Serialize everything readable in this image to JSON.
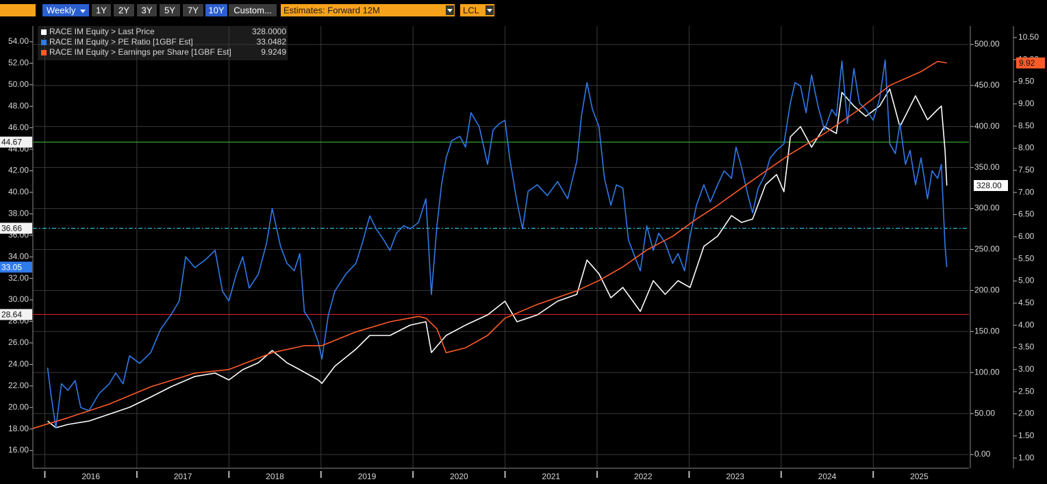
{
  "toolbar": {
    "frequency": "Weekly",
    "ranges": [
      "1Y",
      "2Y",
      "3Y",
      "5Y",
      "7Y",
      "10Y",
      "Custom..."
    ],
    "active_range": 5,
    "estimates": "Estimates: Forward 12M",
    "currency": "LCL"
  },
  "chart_data": {
    "type": "line",
    "xlim": [
      2015.87,
      2026.04
    ],
    "xticks": [
      2016,
      2017,
      2018,
      2019,
      2020,
      2021,
      2022,
      2023,
      2024,
      2025
    ],
    "ylim": [
      14.35,
      55.46
    ],
    "yticks": [
      {
        "value": 16,
        "label": "16.00"
      },
      {
        "value": 18,
        "label": "18.00"
      },
      {
        "value": 20,
        "label": "20.00"
      },
      {
        "value": 22,
        "label": "22.00"
      },
      {
        "value": 24,
        "label": "24.00"
      },
      {
        "value": 26,
        "label": "26.00"
      },
      {
        "value": 28,
        "label": "28.00"
      },
      {
        "value": 30,
        "label": "30.00"
      },
      {
        "value": 32,
        "label": "32.00"
      },
      {
        "value": 34,
        "label": "34.00"
      },
      {
        "value": 36,
        "label": "36.00"
      },
      {
        "value": 38,
        "label": "38.00"
      },
      {
        "value": 40,
        "label": "40.00"
      },
      {
        "value": 42,
        "label": "42.00"
      },
      {
        "value": 44,
        "label": "44.00"
      },
      {
        "value": 46,
        "label": "46.00"
      },
      {
        "value": 48,
        "label": "48.00"
      },
      {
        "value": 50,
        "label": "50.00"
      },
      {
        "value": 52,
        "label": "52.00"
      },
      {
        "value": 54,
        "label": "54.00"
      }
    ],
    "y2lim": [
      -16.7,
      522.5
    ],
    "y2ticks": [
      {
        "value": 0,
        "label": "0.00"
      },
      {
        "value": 50,
        "label": "50.00"
      },
      {
        "value": 100,
        "label": "100.00"
      },
      {
        "value": 150,
        "label": "150.00"
      },
      {
        "value": 200,
        "label": "200.00"
      },
      {
        "value": 250,
        "label": "250.00"
      },
      {
        "value": 300,
        "label": "300.00"
      },
      {
        "value": 350,
        "label": "350.00"
      },
      {
        "value": 400,
        "label": "400.00"
      },
      {
        "value": 450,
        "label": "450.00"
      },
      {
        "value": 500,
        "label": "500.00"
      }
    ],
    "y3lim": [
      0.77,
      10.76
    ],
    "y3ticks": [
      {
        "value": 1,
        "label": "1.00"
      },
      {
        "value": 1.5,
        "label": "1.50"
      },
      {
        "value": 2,
        "label": "2.00"
      },
      {
        "value": 2.5,
        "label": "2.50"
      },
      {
        "value": 3,
        "label": "3.00"
      },
      {
        "value": 3.5,
        "label": "3.50"
      },
      {
        "value": 4,
        "label": "4.00"
      },
      {
        "value": 4.5,
        "label": "4.50"
      },
      {
        "value": 5,
        "label": "5.00"
      },
      {
        "value": 5.5,
        "label": "5.50"
      },
      {
        "value": 6,
        "label": "6.00"
      },
      {
        "value": 6.5,
        "label": "6.50"
      },
      {
        "value": 7,
        "label": "7.00"
      },
      {
        "value": 7.5,
        "label": "7.50"
      },
      {
        "value": 8,
        "label": "8.00"
      },
      {
        "value": 8.5,
        "label": "8.50"
      },
      {
        "value": 9,
        "label": "9.00"
      },
      {
        "value": 9.5,
        "label": "9.50"
      },
      {
        "value": 10,
        "label": "10.00"
      },
      {
        "value": 10.5,
        "label": "10.50"
      }
    ],
    "grid": "y2",
    "hlines": [
      {
        "value": 44.67,
        "color": "#3fae3f",
        "style": "solid"
      },
      {
        "value": 36.66,
        "color": "#2ec8e8",
        "style": "dashdot"
      },
      {
        "value": 28.64,
        "color": "#d42020",
        "style": "solid"
      }
    ],
    "series": [
      {
        "name": "RACE IM Equity > Last Price",
        "legend_value": "328.0000",
        "tag": "328.00",
        "color": "#ffffff",
        "axis": "y2",
        "x": [
          2016.03,
          2016.12,
          2016.25,
          2016.48,
          2016.7,
          2016.92,
          2017.15,
          2017.37,
          2017.63,
          2017.85,
          2018.0,
          2018.15,
          2018.32,
          2018.47,
          2018.63,
          2018.77,
          2018.97,
          2019.01,
          2019.15,
          2019.38,
          2019.53,
          2019.75,
          2019.97,
          2020.14,
          2020.2,
          2020.36,
          2020.57,
          2020.81,
          2021.0,
          2021.13,
          2021.35,
          2021.57,
          2021.78,
          2021.89,
          2022.02,
          2022.15,
          2022.28,
          2022.47,
          2022.61,
          2022.74,
          2022.88,
          2023.01,
          2023.16,
          2023.31,
          2023.46,
          2023.57,
          2023.69,
          2023.83,
          2023.95,
          2024.03,
          2024.1,
          2024.21,
          2024.33,
          2024.47,
          2024.6,
          2024.66,
          2024.79,
          2024.92,
          2025.07,
          2025.18,
          2025.29,
          2025.46,
          2025.59,
          2025.7,
          2025.74,
          2025.78,
          2025.8
        ],
        "values": [
          40.9,
          32.6,
          36.7,
          40.9,
          49.2,
          57.6,
          70.1,
          82.6,
          95.2,
          99.3,
          91.0,
          103.5,
          111.9,
          126.9,
          111.9,
          103.5,
          91.0,
          86.8,
          107.7,
          128.5,
          145.2,
          145.2,
          157.8,
          161.9,
          124.4,
          145.2,
          157.8,
          170.3,
          187.0,
          161.9,
          170.3,
          187.0,
          195.3,
          237.1,
          220.4,
          191.2,
          203.7,
          174.5,
          212.0,
          195.3,
          212.0,
          203.7,
          253.8,
          266.3,
          291.3,
          283.0,
          287.1,
          328.9,
          341.4,
          320.5,
          387.3,
          399.8,
          374.8,
          399.8,
          391.5,
          441.6,
          424.9,
          412.4,
          424.9,
          445.7,
          399.8,
          437.4,
          408.2,
          420.7,
          424.9,
          370.6,
          328
        ]
      },
      {
        "name": "RACE IM Equity > PE Ratio [1GBF Est]",
        "legend_value": "33.0482",
        "tag": "33.05",
        "color": "#2f7bea",
        "axis": "y",
        "x": [
          2016.03,
          2016.07,
          2016.12,
          2016.18,
          2016.25,
          2016.33,
          2016.39,
          2016.48,
          2016.59,
          2016.7,
          2016.77,
          2016.85,
          2016.92,
          2017.03,
          2017.15,
          2017.26,
          2017.37,
          2017.46,
          2017.53,
          2017.63,
          2017.74,
          2017.85,
          2017.93,
          2018.0,
          2018.08,
          2018.15,
          2018.22,
          2018.32,
          2018.41,
          2018.47,
          2018.56,
          2018.63,
          2018.71,
          2018.77,
          2018.82,
          2018.89,
          2018.97,
          2019.01,
          2019.08,
          2019.15,
          2019.27,
          2019.38,
          2019.45,
          2019.53,
          2019.6,
          2019.68,
          2019.75,
          2019.82,
          2019.9,
          2019.97,
          2020.06,
          2020.14,
          2020.2,
          2020.26,
          2020.31,
          2020.36,
          2020.42,
          2020.51,
          2020.57,
          2020.63,
          2020.72,
          2020.81,
          2020.87,
          2020.94,
          2021.0,
          2021.05,
          2021.13,
          2021.19,
          2021.25,
          2021.35,
          2021.46,
          2021.57,
          2021.68,
          2021.78,
          2021.83,
          2021.89,
          2021.95,
          2022.02,
          2022.08,
          2022.15,
          2022.21,
          2022.28,
          2022.34,
          2022.41,
          2022.47,
          2022.54,
          2022.61,
          2022.67,
          2022.74,
          2022.82,
          2022.88,
          2022.95,
          2023.01,
          2023.08,
          2023.16,
          2023.23,
          2023.31,
          2023.38,
          2023.46,
          2023.51,
          2023.57,
          2023.64,
          2023.69,
          2023.75,
          2023.83,
          2023.88,
          2023.95,
          2024.03,
          2024.1,
          2024.15,
          2024.21,
          2024.27,
          2024.33,
          2024.4,
          2024.47,
          2024.55,
          2024.6,
          2024.66,
          2024.72,
          2024.79,
          2024.85,
          2024.92,
          2025.0,
          2025.07,
          2025.13,
          2025.18,
          2025.24,
          2025.29,
          2025.35,
          2025.4,
          2025.46,
          2025.52,
          2025.59,
          2025.64,
          2025.7,
          2025.74,
          2025.78,
          2025.8
        ],
        "values": [
          23.7,
          21.0,
          18.1,
          22.2,
          21.6,
          22.5,
          20.0,
          19.7,
          21.3,
          22.2,
          23.2,
          22.2,
          24.8,
          24.1,
          25.1,
          27.3,
          28.6,
          29.9,
          34.0,
          33.0,
          33.7,
          34.6,
          30.8,
          29.9,
          32.4,
          34.0,
          31.1,
          32.4,
          35.3,
          38.5,
          35.0,
          33.4,
          32.7,
          34.3,
          28.9,
          28.0,
          26.1,
          24.5,
          28.6,
          30.8,
          32.4,
          33.4,
          35.3,
          37.8,
          36.6,
          35.6,
          34.6,
          36.2,
          36.9,
          36.6,
          37.2,
          39.4,
          30.5,
          36.9,
          40.7,
          43.2,
          44.8,
          45.2,
          44.2,
          47.4,
          46.1,
          42.6,
          45.8,
          46.4,
          46.7,
          43.2,
          39.1,
          36.6,
          40.1,
          40.7,
          39.7,
          41.0,
          39.4,
          42.9,
          47.1,
          50.2,
          47.7,
          46.1,
          41.3,
          38.8,
          40.7,
          40.4,
          35.6,
          34.0,
          32.7,
          36.9,
          34.6,
          36.2,
          35.3,
          33.4,
          34.3,
          32.7,
          35.9,
          38.8,
          40.7,
          39.1,
          40.7,
          42.0,
          41.3,
          44.2,
          42.3,
          39.7,
          38.1,
          40.4,
          41.7,
          43.2,
          43.9,
          44.5,
          48.3,
          50.2,
          49.9,
          47.4,
          50.9,
          48.0,
          45.8,
          47.7,
          47.1,
          52.2,
          46.4,
          51.5,
          48.3,
          47.7,
          46.7,
          48.7,
          52.3,
          44.5,
          43.6,
          46.4,
          42.6,
          43.9,
          40.7,
          43.2,
          39.4,
          42.0,
          41.3,
          42.6,
          35.0,
          33.0482
        ]
      },
      {
        "name": "RACE IM Equity > Earnings per Share [1GBF Est]",
        "legend_value": "9.9249",
        "tag": "9.92",
        "color": "#ff5a2a",
        "axis": "y3",
        "x": [
          2015.87,
          2016.25,
          2016.7,
          2017.15,
          2017.63,
          2018.0,
          2018.47,
          2018.82,
          2019.01,
          2019.38,
          2019.75,
          2020.06,
          2020.14,
          2020.26,
          2020.36,
          2020.57,
          2020.81,
          2021.0,
          2021.35,
          2021.78,
          2022.02,
          2022.28,
          2022.54,
          2022.82,
          2023.08,
          2023.31,
          2023.57,
          2023.83,
          2024.1,
          2024.47,
          2024.85,
          2025.18,
          2025.52,
          2025.7,
          2025.8
        ],
        "values": [
          1.67,
          1.91,
          2.22,
          2.61,
          2.92,
          3.0,
          3.38,
          3.54,
          3.54,
          3.85,
          4.08,
          4.2,
          4.16,
          3.92,
          3.38,
          3.49,
          3.77,
          4.16,
          4.47,
          4.78,
          5.01,
          5.32,
          5.7,
          6.01,
          6.4,
          6.71,
          7.1,
          7.48,
          7.87,
          8.33,
          8.88,
          9.42,
          9.73,
          9.96,
          9.9249
        ]
      }
    ]
  }
}
